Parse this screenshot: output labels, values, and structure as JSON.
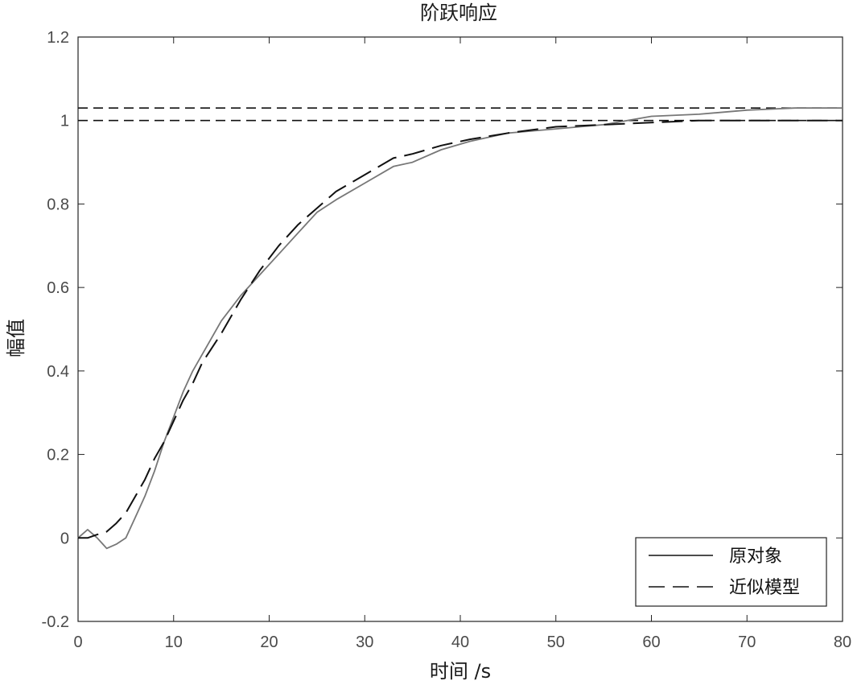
{
  "chart_data": {
    "type": "line",
    "title": "阶跃响应",
    "xlabel": "时间 /s",
    "ylabel": "幅值",
    "xlim": [
      0,
      80
    ],
    "ylim": [
      -0.2,
      1.2
    ],
    "xticks": [
      0,
      10,
      20,
      30,
      40,
      50,
      60,
      70,
      80
    ],
    "yticks": [
      -0.2,
      0,
      0.2,
      0.4,
      0.6,
      0.8,
      1,
      1.2
    ],
    "grid": false,
    "legend_position": "bottom-right",
    "reference_lines": [
      {
        "y": 1.0,
        "style": "dashed",
        "color": "#111111"
      },
      {
        "y": 1.03,
        "style": "dashed",
        "color": "#111111"
      }
    ],
    "series": [
      {
        "name": "原对象",
        "style": "solid",
        "color": "#777777",
        "x": [
          0,
          1,
          2,
          3,
          4,
          5,
          6,
          7,
          8,
          9,
          10,
          11,
          12,
          13,
          15,
          17,
          19,
          21,
          23,
          25,
          27,
          30,
          33,
          35,
          38,
          41,
          45,
          50,
          55,
          60,
          65,
          70,
          75,
          80
        ],
        "y": [
          0,
          0.02,
          0.0,
          -0.025,
          -0.015,
          0.0,
          0.05,
          0.1,
          0.16,
          0.23,
          0.29,
          0.35,
          0.4,
          0.44,
          0.52,
          0.58,
          0.63,
          0.68,
          0.73,
          0.78,
          0.81,
          0.85,
          0.89,
          0.9,
          0.93,
          0.95,
          0.97,
          0.98,
          0.99,
          1.01,
          1.015,
          1.025,
          1.03,
          1.03
        ]
      },
      {
        "name": "近似模型",
        "style": "dashed",
        "color": "#111111",
        "x": [
          0,
          1,
          2,
          3,
          4,
          5,
          6,
          7,
          8,
          9,
          10,
          11,
          12,
          13,
          15,
          17,
          19,
          21,
          23,
          25,
          27,
          30,
          33,
          35,
          38,
          41,
          45,
          50,
          55,
          60,
          65,
          70,
          75,
          80
        ],
        "y": [
          0,
          0.0,
          0.008,
          0.015,
          0.035,
          0.06,
          0.1,
          0.14,
          0.19,
          0.23,
          0.28,
          0.33,
          0.37,
          0.42,
          0.49,
          0.57,
          0.64,
          0.7,
          0.75,
          0.79,
          0.83,
          0.87,
          0.91,
          0.92,
          0.94,
          0.955,
          0.97,
          0.985,
          0.99,
          0.995,
          1.0,
          1.0,
          1.0,
          1.0
        ]
      }
    ]
  }
}
